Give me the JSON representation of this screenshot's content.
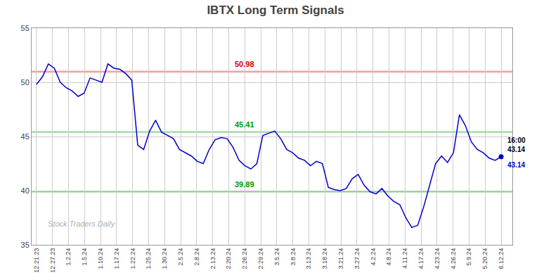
{
  "chart_data": {
    "type": "line",
    "title": "IBTX Long Term Signals",
    "values": [
      49.8,
      50.5,
      51.7,
      51.3,
      50.0,
      49.5,
      49.2,
      48.7,
      49.0,
      50.4,
      50.2,
      50.0,
      51.7,
      51.3,
      51.2,
      50.8,
      50.2,
      44.2,
      43.8,
      45.5,
      46.5,
      45.4,
      45.1,
      44.8,
      43.8,
      43.5,
      43.2,
      42.7,
      42.5,
      43.8,
      44.7,
      44.9,
      44.8,
      44.0,
      42.8,
      42.3,
      42.0,
      42.5,
      45.1,
      45.3,
      45.5,
      44.8,
      43.8,
      43.5,
      43.0,
      42.8,
      42.3,
      42.7,
      42.5,
      40.3,
      40.1,
      40.0,
      40.2,
      41.1,
      41.5,
      40.5,
      39.9,
      39.7,
      40.2,
      39.5,
      39.0,
      38.7,
      37.5,
      36.6,
      36.8,
      38.5,
      40.5,
      42.5,
      43.2,
      42.6,
      43.5,
      47.0,
      46.0,
      44.5,
      43.8,
      43.5,
      43.0,
      42.8,
      43.14
    ],
    "color": "#0000cc",
    "xlim": [
      -0.3,
      29.7
    ],
    "xticks": [
      {
        "value": 0,
        "label": "12.21.23"
      },
      {
        "value": 1,
        "label": "12.27.23"
      },
      {
        "value": 2,
        "label": "1.2.24"
      },
      {
        "value": 3,
        "label": "1.5.24"
      },
      {
        "value": 4,
        "label": "1.10.24"
      },
      {
        "value": 5,
        "label": "1.17.24"
      },
      {
        "value": 6,
        "label": "1.22.24"
      },
      {
        "value": 7,
        "label": "1.25.24"
      },
      {
        "value": 8,
        "label": "1.30.24"
      },
      {
        "value": 9,
        "label": "2.5.24"
      },
      {
        "value": 10,
        "label": "2.8.24"
      },
      {
        "value": 11,
        "label": "2.13.24"
      },
      {
        "value": 12,
        "label": "2.20.24"
      },
      {
        "value": 13,
        "label": "2.26.24"
      },
      {
        "value": 14,
        "label": "2.29.24"
      },
      {
        "value": 15,
        "label": "3.5.24"
      },
      {
        "value": 16,
        "label": "3.8.24"
      },
      {
        "value": 17,
        "label": "3.13.24"
      },
      {
        "value": 18,
        "label": "3.18.24"
      },
      {
        "value": 19,
        "label": "3.21.24"
      },
      {
        "value": 20,
        "label": "3.27.24"
      },
      {
        "value": 21,
        "label": "4.2.24"
      },
      {
        "value": 22,
        "label": "4.8.24"
      },
      {
        "value": 23,
        "label": "4.11.24"
      },
      {
        "value": 24,
        "label": "4.17.24"
      },
      {
        "value": 25,
        "label": "4.23.24"
      },
      {
        "value": 26,
        "label": "4.26.24"
      },
      {
        "value": 27,
        "label": "5.9.24"
      },
      {
        "value": 28,
        "label": "5.20.24"
      },
      {
        "value": 29,
        "label": "6.12.24"
      }
    ],
    "ylim": [
      35,
      55
    ],
    "yticks": [
      35,
      40,
      45,
      50,
      55
    ],
    "grid": true,
    "grid_color": "#cccccc",
    "background_color": "#ffffff",
    "reference_lines": [
      {
        "value": 50.98,
        "color": "#cc0000"
      },
      {
        "value": 45.41,
        "color": "#009900"
      },
      {
        "value": 39.89,
        "color": "#009900"
      }
    ],
    "last_point": {
      "label": "16:00",
      "value": 43.14
    },
    "watermark": "Stock Traders Daily"
  }
}
